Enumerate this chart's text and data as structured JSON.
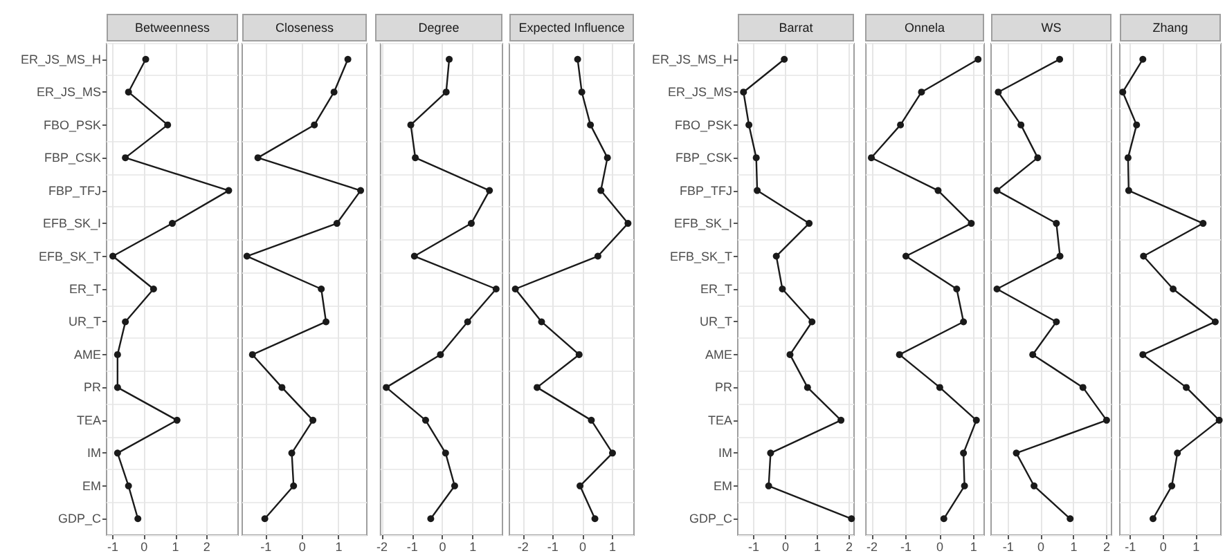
{
  "chart_data": [
    {
      "type": "line",
      "title": "Betweenness",
      "orientation": "horizontal",
      "categories": [
        "ER_JS_MS_H",
        "ER_JS_MS",
        "FBO_PSK",
        "FBP_CSK",
        "FBP_TFJ",
        "EFB_SK_I",
        "EFB_SK_T",
        "ER_T",
        "UR_T",
        "AME",
        "PR",
        "TEA",
        "IM",
        "EM",
        "GDP_C"
      ],
      "values": [
        0.05,
        -0.5,
        0.75,
        -0.6,
        2.7,
        0.9,
        -1.0,
        0.3,
        -0.6,
        -0.85,
        -0.85,
        1.05,
        -0.85,
        -0.5,
        -0.2
      ],
      "color": "#1a1a1a",
      "marker": "circle",
      "grid": true,
      "xlim": [
        -1.2,
        3.0
      ],
      "xticks": [
        -1,
        0,
        1,
        2
      ]
    },
    {
      "type": "line",
      "title": "Closeness",
      "orientation": "horizontal",
      "values": [
        1.25,
        0.87,
        0.33,
        -1.22,
        1.6,
        0.95,
        -1.52,
        0.52,
        0.65,
        -1.37,
        -0.56,
        0.29,
        -0.29,
        -0.24,
        -1.03
      ],
      "color": "#1a1a1a",
      "marker": "circle",
      "grid": true,
      "xlim": [
        -1.65,
        1.77
      ],
      "xticks": [
        -1,
        0,
        1
      ],
      "tick_labels": "x"
    },
    {
      "type": "line",
      "title": "Degree",
      "orientation": "horizontal",
      "values": [
        0.22,
        0.12,
        -1.05,
        -0.9,
        1.55,
        0.95,
        -0.93,
        1.77,
        0.83,
        -0.07,
        -1.86,
        -0.56,
        0.1,
        0.4,
        -0.39
      ],
      "color": "#1a1a1a",
      "marker": "circle",
      "grid": true,
      "xlim": [
        -2.05,
        1.98
      ],
      "xticks": [
        -2,
        -1,
        0,
        1
      ],
      "tick_labels": "x"
    },
    {
      "type": "line",
      "title": "Expected Influence",
      "orientation": "horizontal",
      "values": [
        -0.17,
        -0.03,
        0.26,
        0.83,
        0.61,
        1.52,
        0.51,
        -2.26,
        -1.38,
        -0.12,
        -1.53,
        0.29,
        1.0,
        -0.09,
        0.41
      ],
      "color": "#1a1a1a",
      "marker": "circle",
      "grid": true,
      "xlim": [
        -2.46,
        1.72
      ],
      "xticks": [
        -2,
        -1,
        0,
        1
      ],
      "tick_labels": "x"
    },
    {
      "type": "line",
      "title": "Barrat",
      "orientation": "horizontal",
      "categories": [
        "ER_JS_MS_H",
        "ER_JS_MS",
        "FBO_PSK",
        "FBP_CSK",
        "FBP_TFJ",
        "EFB_SK_I",
        "EFB_SK_T",
        "ER_T",
        "UR_T",
        "AME",
        "PR",
        "TEA",
        "IM",
        "EM",
        "GDP_C"
      ],
      "values": [
        -0.04,
        -1.32,
        -1.15,
        -0.92,
        -0.89,
        0.74,
        -0.29,
        -0.1,
        0.83,
        0.14,
        0.69,
        1.74,
        -0.47,
        -0.53,
        2.07
      ],
      "color": "#1a1a1a",
      "marker": "circle",
      "grid": true,
      "xlim": [
        -1.5,
        2.15
      ],
      "xticks": [
        -1,
        0,
        1,
        2
      ]
    },
    {
      "type": "line",
      "title": "Onnela",
      "orientation": "horizontal",
      "values": [
        1.13,
        -0.54,
        -1.16,
        -2.02,
        -0.05,
        0.93,
        -1.0,
        0.5,
        0.7,
        -1.19,
        0.0,
        1.08,
        0.7,
        0.73,
        0.12
      ],
      "color": "#1a1a1a",
      "marker": "circle",
      "grid": true,
      "xlim": [
        -2.18,
        1.31
      ],
      "xticks": [
        -2,
        -1,
        0,
        1
      ],
      "tick_labels": "x"
    },
    {
      "type": "line",
      "title": "WS",
      "orientation": "horizontal",
      "values": [
        0.57,
        -1.3,
        -0.61,
        -0.1,
        -1.34,
        0.47,
        0.58,
        -1.34,
        0.47,
        -0.25,
        1.28,
        2.0,
        -0.75,
        -0.21,
        0.89
      ],
      "color": "#1a1a1a",
      "marker": "circle",
      "grid": true,
      "xlim": [
        -1.52,
        2.15
      ],
      "xticks": [
        -1,
        0,
        1,
        2
      ],
      "tick_labels": "x"
    },
    {
      "type": "line",
      "title": "Zhang",
      "orientation": "horizontal",
      "values": [
        -0.62,
        -1.23,
        -0.81,
        -1.07,
        -1.05,
        1.21,
        -0.6,
        0.3,
        1.58,
        -0.62,
        0.7,
        1.7,
        0.43,
        0.26,
        -0.31
      ],
      "color": "#1a1a1a",
      "marker": "circle",
      "grid": true,
      "xlim": [
        -1.32,
        1.75
      ],
      "xticks": [
        -1,
        0,
        1
      ],
      "tick_labels": "x"
    }
  ]
}
